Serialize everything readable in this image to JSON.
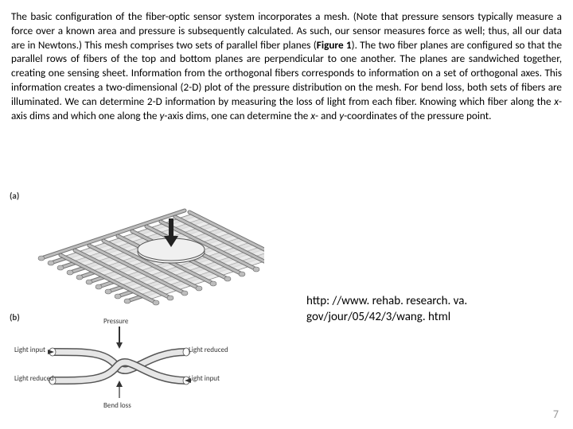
{
  "paragraph": {
    "text_parts": [
      "The basic configuration of the fiber-optic sensor system incorporates a mesh. (Note that pressure sensors typically measure a force over a known area and pressure is subsequently calculated. As such, our sensor measures force as well; thus, all our data are in Newtons.) This mesh comprises two sets of parallel fiber planes (",
      "Figure 1",
      "). The two fiber planes are configured so that the parallel rows of fibers of the top and bottom planes are perpendicular to one another. The planes are sandwiched together, creating one sensing sheet. Information from the orthogonal fibers corresponds to information on a set of orthogonal axes. This information creates a two-dimensional (2-D) plot of the pressure distribution on the mesh. For bend loss, both sets of fibers are illuminated. We can determine 2-D information by measuring the loss of light from each fiber. Knowing which fiber along the ",
      "x",
      "-axis dims and which one along the ",
      "y",
      "-axis dims, one can determine the ",
      "x",
      "- and ",
      "y",
      "-coordinates of the pressure point."
    ]
  },
  "figure_a": {
    "panel_label": "(a)",
    "svg": {
      "bg": "#ffffff",
      "fiber_fill": "#bdbdbd",
      "fiber_stroke": "#666666",
      "grid_fill": "#e8e8e8",
      "grid_stroke": "#888888",
      "plate_fill": "#f0f0f0",
      "plate_stroke": "#555555",
      "arrow_fill": "#222222",
      "n_bottom_rods": 10,
      "n_top_rods": 10,
      "rod_rx": 4,
      "rod_ry": 6
    }
  },
  "figure_b": {
    "panel_label": "(b)",
    "labels": {
      "pressure": "Pressure",
      "light_input_top": "Light input",
      "light_input_bot": "Light input",
      "light_reduced_top": "Light reduced",
      "light_reduced_bot": "Light reduced",
      "bend_loss": "Bend loss"
    },
    "svg": {
      "fiber_fill": "#e6e6e6",
      "fiber_stroke": "#555555",
      "arrow_fill": "#333333"
    }
  },
  "url": "http: //www. rehab. research. va. gov/jour/05/42/3/wang. html",
  "page_number": "7",
  "colors": {
    "text": "#000000",
    "page_num": "#9a9a9a",
    "bg": "#ffffff"
  }
}
